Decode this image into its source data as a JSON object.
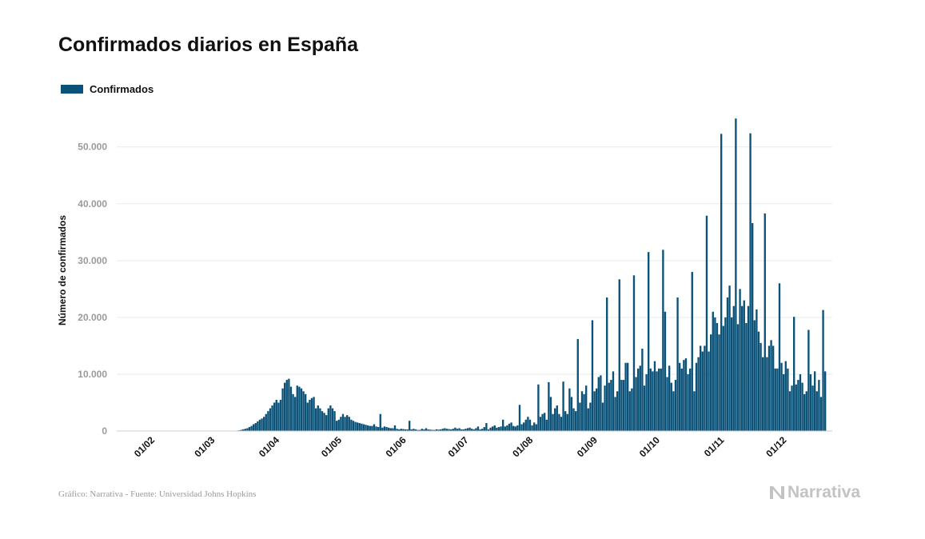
{
  "title": "Confirmados diarios en España",
  "source": "Gráfico: Narrativa - Fuente: Universidad Johns Hopkins",
  "brand": "Narrativa",
  "brand_icon": "narrativa-logo-icon",
  "colors": {
    "bar": "#0b5279",
    "grid": "#e9e9e9",
    "axis_text": "#9a9a9a",
    "brand": "#c3c3c3"
  },
  "legend": {
    "label": "Confirmados"
  },
  "chart_data": {
    "type": "bar",
    "title": "Confirmados diarios en España",
    "ylabel": "Número de confirmados",
    "xlabel": "",
    "ylim": [
      0,
      57000
    ],
    "y_ticks": [
      0,
      10000,
      20000,
      30000,
      40000,
      50000
    ],
    "y_tick_labels": [
      "0",
      "10.000",
      "20.000",
      "30.000",
      "40.000",
      "50.000"
    ],
    "x_tick_labels": [
      "01/02",
      "01/03",
      "01/04",
      "01/05",
      "01/06",
      "01/07",
      "01/08",
      "01/09",
      "01/10",
      "01/11",
      "01/12"
    ],
    "grid": true,
    "legend_position": "top-left",
    "series": [
      {
        "name": "Confirmados",
        "color": "#0b5279",
        "values": [
          0,
          0,
          0,
          0,
          0,
          0,
          0,
          0,
          0,
          0,
          0,
          0,
          0,
          0,
          0,
          0,
          0,
          0,
          0,
          0,
          0,
          0,
          0,
          0,
          0,
          0,
          0,
          0,
          0,
          0,
          0,
          0,
          0,
          0,
          0,
          0,
          0,
          0,
          0,
          10,
          20,
          40,
          80,
          120,
          200,
          300,
          400,
          500,
          700,
          900,
          1200,
          1400,
          1700,
          2000,
          2200,
          2500,
          3000,
          3500,
          4000,
          4500,
          5000,
          5500,
          5000,
          5500,
          7500,
          8500,
          9000,
          9200,
          7800,
          6500,
          6000,
          8000,
          7800,
          7500,
          7000,
          6500,
          5000,
          5500,
          5800,
          6000,
          4000,
          4500,
          4000,
          3500,
          3200,
          2800,
          4000,
          4500,
          4000,
          3500,
          1800,
          2000,
          2500,
          3000,
          2500,
          2800,
          2500,
          2000,
          1800,
          1600,
          1500,
          1400,
          1300,
          1200,
          1100,
          1000,
          900,
          900,
          1200,
          800,
          700,
          3000,
          600,
          800,
          700,
          600,
          500,
          500,
          1000,
          400,
          300,
          400,
          350,
          300,
          300,
          1800,
          300,
          400,
          300,
          200,
          200,
          400,
          300,
          500,
          300,
          250,
          200,
          200,
          300,
          250,
          300,
          400,
          500,
          400,
          350,
          300,
          400,
          600,
          400,
          500,
          300,
          300,
          400,
          500,
          600,
          400,
          300,
          500,
          800,
          300,
          400,
          700,
          1400,
          300,
          600,
          800,
          1000,
          600,
          700,
          800,
          2000,
          800,
          1000,
          1300,
          1500,
          900,
          800,
          1000,
          4600,
          1200,
          1500,
          2000,
          2500,
          2000,
          1000,
          1500,
          1200,
          8200,
          2500,
          3000,
          3200,
          2000,
          8600,
          6000,
          3000,
          4000,
          4500,
          3000,
          2500,
          8700,
          3500,
          3000,
          7500,
          6000,
          4000,
          3500,
          16200,
          5000,
          7000,
          6500,
          8000,
          4000,
          5000,
          19500,
          7000,
          7500,
          9500,
          9800,
          5000,
          8000,
          23500,
          8500,
          9000,
          10500,
          6000,
          7000,
          26700,
          9000,
          9000,
          12000,
          12000,
          7000,
          7500,
          27400,
          9500,
          11000,
          11500,
          14500,
          8000,
          10000,
          31500,
          11000,
          10500,
          12300,
          10500,
          11000,
          11000,
          31900,
          21000,
          9500,
          11500,
          8500,
          7000,
          9000,
          23500,
          12000,
          11000,
          12500,
          12800,
          10000,
          11000,
          28000,
          7000,
          12000,
          13000,
          15000,
          14000,
          15000,
          37900,
          14000,
          17000,
          21000,
          20000,
          19000,
          17000,
          52300,
          18500,
          20000,
          23500,
          25600,
          20000,
          22000,
          55000,
          18800,
          25000,
          22000,
          23000,
          19000,
          22000,
          52400,
          36600,
          19500,
          21400,
          17500,
          15500,
          13000,
          38300,
          13000,
          15000,
          16000,
          15000,
          11000,
          11000,
          26000,
          12000,
          10000,
          12300,
          11000,
          7000,
          8000,
          20100,
          8200,
          9000,
          10000,
          8500,
          6500,
          7000,
          17800,
          10000,
          8000,
          10500,
          7000,
          9000,
          6000,
          21300,
          10500
        ]
      }
    ]
  }
}
